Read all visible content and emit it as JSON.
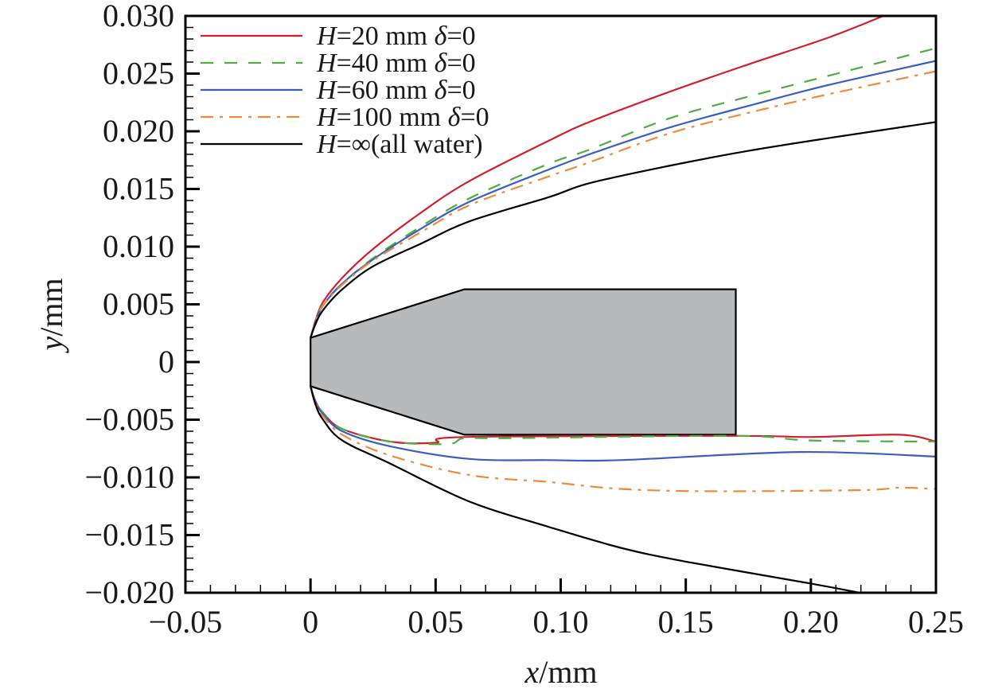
{
  "chart_data": {
    "type": "line",
    "title": "",
    "xlabel": {
      "var": "x",
      "unit": "/mm"
    },
    "ylabel": {
      "var": "y",
      "unit": "/mm"
    },
    "xlim": [
      -0.05,
      0.25
    ],
    "ylim": [
      -0.02,
      0.03
    ],
    "x_major_ticks": [
      -0.05,
      0,
      0.05,
      0.1,
      0.15,
      0.2,
      0.25
    ],
    "x_tick_labels": [
      "−0.05",
      "0",
      "0.05",
      "0.10",
      "0.15",
      "0.20",
      "0.25"
    ],
    "x_minor_step": 0.01,
    "y_major_ticks": [
      0.03,
      0.025,
      0.02,
      0.015,
      0.01,
      0.005,
      0,
      -0.005,
      -0.01,
      -0.015,
      -0.02
    ],
    "y_tick_labels": [
      "0.030",
      "0.025",
      "0.020",
      "0.015",
      "0.010",
      "0.005",
      "0",
      "−0.005",
      "−0.010",
      "−0.015",
      "−0.020"
    ],
    "y_minor_step": 0.001,
    "grid": false,
    "legend_position": "top-left",
    "body_outline": {
      "fill": "#b8b9bb",
      "stroke": "#000000",
      "points": [
        [
          0,
          0.0021
        ],
        [
          0.0615,
          0.0063
        ],
        [
          0.17,
          0.0063
        ],
        [
          0.17,
          -0.0063
        ],
        [
          0.0615,
          -0.0063
        ],
        [
          0,
          -0.0021
        ]
      ]
    },
    "series": [
      {
        "name": "H=20 mm δ=0",
        "legend": {
          "var": "H",
          "rest": "=20 mm ",
          "delta": "δ",
          "tail": "=0"
        },
        "color": "#d0202e",
        "dash": "solid",
        "upper": [
          [
            0,
            0.0021
          ],
          [
            0.002,
            0.0036
          ],
          [
            0.005,
            0.0052
          ],
          [
            0.0127,
            0.0073
          ],
          [
            0.025,
            0.0098
          ],
          [
            0.0445,
            0.013
          ],
          [
            0.0636,
            0.0157
          ],
          [
            0.0954,
            0.0192
          ],
          [
            0.1114,
            0.0208
          ],
          [
            0.1432,
            0.0234
          ],
          [
            0.175,
            0.0258
          ],
          [
            0.2068,
            0.0281
          ],
          [
            0.229,
            0.03
          ]
        ],
        "lower": [
          [
            0,
            -0.0021
          ],
          [
            0.002,
            -0.0034
          ],
          [
            0.005,
            -0.0044
          ],
          [
            0.0127,
            -0.0058
          ],
          [
            0.0318,
            -0.0069
          ],
          [
            0.05,
            -0.007
          ],
          [
            0.0615,
            -0.0065
          ],
          [
            0.17,
            -0.0064
          ],
          [
            0.2,
            -0.0065
          ],
          [
            0.2355,
            -0.0063
          ],
          [
            0.25,
            -0.0069
          ]
        ]
      },
      {
        "name": "H=40 mm δ=0",
        "legend": {
          "var": "H",
          "rest": "=40 mm ",
          "delta": "δ",
          "tail": "=0"
        },
        "color": "#4caf3e",
        "dash": "dashed",
        "upper": [
          [
            0,
            0.0021
          ],
          [
            0.002,
            0.0035
          ],
          [
            0.005,
            0.005
          ],
          [
            0.0127,
            0.0068
          ],
          [
            0.025,
            0.009
          ],
          [
            0.0445,
            0.0118
          ],
          [
            0.0636,
            0.0142
          ],
          [
            0.0954,
            0.0172
          ],
          [
            0.1114,
            0.0184
          ],
          [
            0.1432,
            0.0211
          ],
          [
            0.175,
            0.023
          ],
          [
            0.2068,
            0.0248
          ],
          [
            0.25,
            0.0272
          ]
        ],
        "lower": [
          [
            0,
            -0.0021
          ],
          [
            0.002,
            -0.0034
          ],
          [
            0.005,
            -0.0044
          ],
          [
            0.0127,
            -0.0058
          ],
          [
            0.0318,
            -0.0069
          ],
          [
            0.055,
            -0.0071
          ],
          [
            0.0615,
            -0.0066
          ],
          [
            0.08,
            -0.0066
          ],
          [
            0.17,
            -0.0064
          ],
          [
            0.2,
            -0.0068
          ],
          [
            0.25,
            -0.0069
          ]
        ]
      },
      {
        "name": "H=60 mm δ=0",
        "legend": {
          "var": "H",
          "rest": "=60 mm ",
          "delta": "δ",
          "tail": "=0"
        },
        "color": "#3a5fbf",
        "dash": "solid",
        "upper": [
          [
            0,
            0.0021
          ],
          [
            0.002,
            0.0035
          ],
          [
            0.005,
            0.0049
          ],
          [
            0.0127,
            0.0068
          ],
          [
            0.025,
            0.0089
          ],
          [
            0.0445,
            0.0116
          ],
          [
            0.0636,
            0.0139
          ],
          [
            0.0954,
            0.0167
          ],
          [
            0.1114,
            0.018
          ],
          [
            0.1432,
            0.0203
          ],
          [
            0.175,
            0.0222
          ],
          [
            0.2068,
            0.024
          ],
          [
            0.25,
            0.0261
          ]
        ],
        "lower": [
          [
            0,
            -0.0021
          ],
          [
            0.002,
            -0.0035
          ],
          [
            0.005,
            -0.0045
          ],
          [
            0.0127,
            -0.006
          ],
          [
            0.0318,
            -0.0073
          ],
          [
            0.0636,
            -0.0084
          ],
          [
            0.0954,
            -0.0085
          ],
          [
            0.124,
            -0.0085
          ],
          [
            0.196,
            -0.0078
          ],
          [
            0.25,
            -0.0082
          ]
        ]
      },
      {
        "name": "H=100 mm δ=0",
        "legend": {
          "var": "H",
          "rest": "=100 mm ",
          "delta": "δ",
          "tail": "=0"
        },
        "color": "#f08a3a",
        "dash": "dashdot",
        "upper": [
          [
            0,
            0.0021
          ],
          [
            0.002,
            0.0035
          ],
          [
            0.005,
            0.0049
          ],
          [
            0.0127,
            0.0067
          ],
          [
            0.025,
            0.0088
          ],
          [
            0.0445,
            0.0113
          ],
          [
            0.0636,
            0.0136
          ],
          [
            0.0954,
            0.0161
          ],
          [
            0.1114,
            0.0173
          ],
          [
            0.1432,
            0.0198
          ],
          [
            0.175,
            0.0216
          ],
          [
            0.2068,
            0.0232
          ],
          [
            0.25,
            0.0252
          ]
        ],
        "lower": [
          [
            0,
            -0.0021
          ],
          [
            0.002,
            -0.0036
          ],
          [
            0.005,
            -0.0047
          ],
          [
            0.0127,
            -0.0063
          ],
          [
            0.0318,
            -0.0081
          ],
          [
            0.0636,
            -0.0098
          ],
          [
            0.0954,
            -0.0104
          ],
          [
            0.124,
            -0.011
          ],
          [
            0.16,
            -0.0112
          ],
          [
            0.22,
            -0.0111
          ],
          [
            0.235,
            -0.0109
          ],
          [
            0.25,
            -0.011
          ]
        ]
      },
      {
        "name": "H=∞(all water)",
        "legend": {
          "var": "H",
          "rest": "=∞(all water)",
          "delta": "",
          "tail": ""
        },
        "color": "#000000",
        "dash": "solid",
        "upper": [
          [
            0,
            0.0021
          ],
          [
            0.002,
            0.0033
          ],
          [
            0.005,
            0.0045
          ],
          [
            0.0127,
            0.0063
          ],
          [
            0.025,
            0.0083
          ],
          [
            0.0445,
            0.0103
          ],
          [
            0.0636,
            0.0122
          ],
          [
            0.0954,
            0.0143
          ],
          [
            0.1114,
            0.0155
          ],
          [
            0.1432,
            0.017
          ],
          [
            0.175,
            0.0183
          ],
          [
            0.2068,
            0.0194
          ],
          [
            0.25,
            0.0208
          ]
        ],
        "lower": [
          [
            0,
            -0.0021
          ],
          [
            0.002,
            -0.0037
          ],
          [
            0.005,
            -0.005
          ],
          [
            0.0127,
            -0.0068
          ],
          [
            0.0318,
            -0.0088
          ],
          [
            0.0636,
            -0.0121
          ],
          [
            0.0954,
            -0.0143
          ],
          [
            0.124,
            -0.0161
          ],
          [
            0.15,
            -0.0173
          ],
          [
            0.2,
            -0.0192
          ],
          [
            0.2195,
            -0.02
          ]
        ]
      }
    ]
  }
}
